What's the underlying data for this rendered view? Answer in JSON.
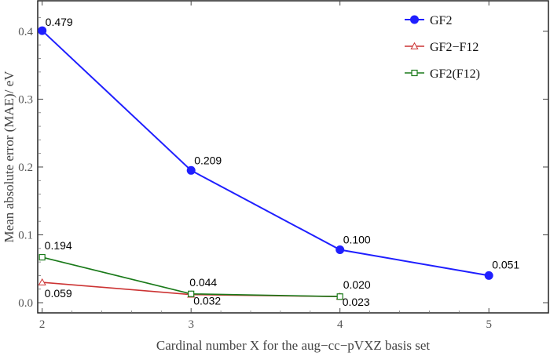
{
  "chart_data": {
    "type": "line",
    "xlabel": "Cardinal number X for the aug−cc−pVXZ basis set",
    "ylabel": "Mean absolute error (MAE)/ eV",
    "x": [
      2,
      3,
      4,
      5
    ],
    "xlim": [
      1.97,
      5.4
    ],
    "ylim": [
      -0.015,
      0.445
    ],
    "x_ticks": [
      "2",
      "3",
      "4",
      "5"
    ],
    "y_ticks": [
      "0.0",
      "0.1",
      "0.2",
      "0.3",
      "0.4"
    ],
    "legend_position": "top-right",
    "series": [
      {
        "name": "GF2",
        "color": "#1f1fff",
        "marker": "filled-circle",
        "x": [
          2,
          3,
          4,
          5
        ],
        "y": [
          0.401,
          0.195,
          0.078,
          0.04
        ],
        "labels": [
          "0.479",
          "0.209",
          "0.100",
          "0.051"
        ]
      },
      {
        "name": "GF2−F12",
        "color": "#cc3333",
        "marker": "open-triangle",
        "x": [
          2,
          3,
          4
        ],
        "y": [
          0.03,
          0.012,
          0.009
        ],
        "labels": [
          "0.059",
          "0.032",
          "0.023"
        ]
      },
      {
        "name": "GF2(F12)",
        "color": "#1a7a1a",
        "marker": "open-square",
        "x": [
          2,
          3,
          4
        ],
        "y": [
          0.067,
          0.013,
          0.009
        ],
        "labels": [
          "0.194",
          "0.044",
          "0.020"
        ]
      }
    ]
  }
}
